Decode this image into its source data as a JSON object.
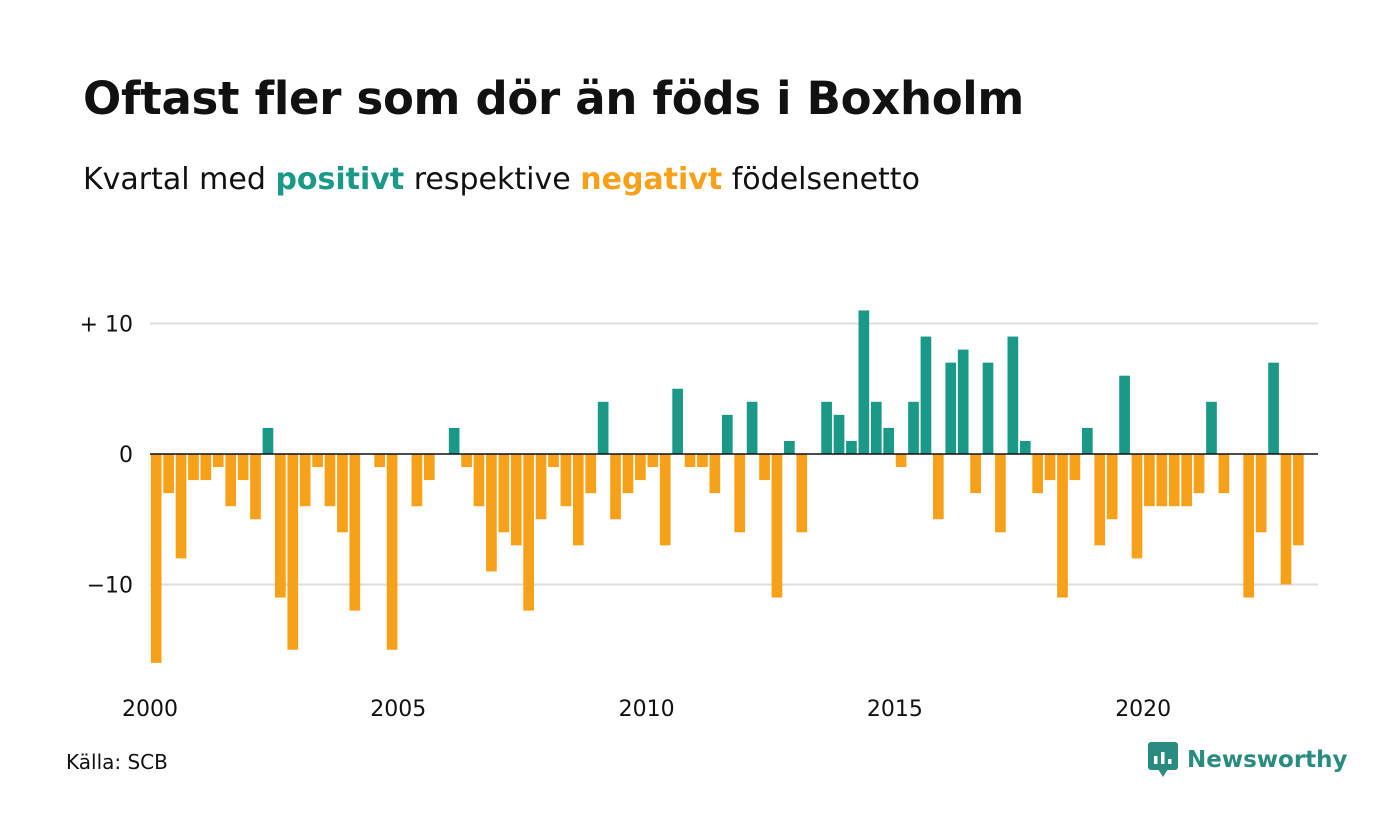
{
  "header": {
    "title": "Oftast fler som dör än föds i Boxholm",
    "subtitle_prefix": "Kvartal med",
    "subtitle_positive": "positivt",
    "subtitle_middle": "respektive",
    "subtitle_negative": "negativt",
    "subtitle_suffix": "födelsenetto"
  },
  "colors": {
    "positive": "#1a9988",
    "negative": "#f7a11a",
    "grid": "#dddddd",
    "baseline": "#111111",
    "brand": "#2a8c80"
  },
  "footer": {
    "source": "Källa: SCB",
    "brand_name": "Newsworthy",
    "brand_icon": "newsworthy-logo-icon"
  },
  "chart_data": {
    "type": "bar",
    "title": "Oftast fler som dör än föds i Boxholm",
    "subtitle": "Kvartal med positivt respektive negativt födelsenetto",
    "x_start": "2000-Q1",
    "x_end": "2023-Q2",
    "x_ticks": [
      "2000",
      "2005",
      "2010",
      "2015",
      "2020"
    ],
    "y_ticks": [
      {
        "value": 10,
        "label": "+ 10"
      },
      {
        "value": 0,
        "label": "0"
      },
      {
        "value": -10,
        "label": "−10"
      }
    ],
    "ylim": [
      -16,
      11
    ],
    "grid": true,
    "categories": [
      "2000-Q1",
      "2000-Q2",
      "2000-Q3",
      "2000-Q4",
      "2001-Q1",
      "2001-Q2",
      "2001-Q3",
      "2001-Q4",
      "2002-Q1",
      "2002-Q2",
      "2002-Q3",
      "2002-Q4",
      "2003-Q1",
      "2003-Q2",
      "2003-Q3",
      "2003-Q4",
      "2004-Q1",
      "2004-Q2",
      "2004-Q3",
      "2004-Q4",
      "2005-Q1",
      "2005-Q2",
      "2005-Q3",
      "2005-Q4",
      "2006-Q1",
      "2006-Q2",
      "2006-Q3",
      "2006-Q4",
      "2007-Q1",
      "2007-Q2",
      "2007-Q3",
      "2007-Q4",
      "2008-Q1",
      "2008-Q2",
      "2008-Q3",
      "2008-Q4",
      "2009-Q1",
      "2009-Q2",
      "2009-Q3",
      "2009-Q4",
      "2010-Q1",
      "2010-Q2",
      "2010-Q3",
      "2010-Q4",
      "2011-Q1",
      "2011-Q2",
      "2011-Q3",
      "2011-Q4",
      "2012-Q1",
      "2012-Q2",
      "2012-Q3",
      "2012-Q4",
      "2013-Q1",
      "2013-Q2",
      "2013-Q3",
      "2013-Q4",
      "2014-Q1",
      "2014-Q2",
      "2014-Q3",
      "2014-Q4",
      "2015-Q1",
      "2015-Q2",
      "2015-Q3",
      "2015-Q4",
      "2016-Q1",
      "2016-Q2",
      "2016-Q3",
      "2016-Q4",
      "2017-Q1",
      "2017-Q2",
      "2017-Q3",
      "2017-Q4",
      "2018-Q1",
      "2018-Q2",
      "2018-Q3",
      "2018-Q4",
      "2019-Q1",
      "2019-Q2",
      "2019-Q3",
      "2019-Q4",
      "2020-Q1",
      "2020-Q2",
      "2020-Q3",
      "2020-Q4",
      "2021-Q1",
      "2021-Q2",
      "2021-Q3",
      "2021-Q4",
      "2022-Q1",
      "2022-Q2",
      "2022-Q3",
      "2022-Q4",
      "2023-Q1",
      "2023-Q2"
    ],
    "values": [
      -16,
      -3,
      -8,
      -2,
      -2,
      -1,
      -4,
      -2,
      -5,
      2,
      -11,
      -15,
      -4,
      -1,
      -4,
      -6,
      -12,
      0,
      -1,
      -15,
      0,
      -4,
      -2,
      0,
      2,
      -1,
      -4,
      -9,
      -6,
      -7,
      -12,
      -5,
      -1,
      -4,
      -7,
      -3,
      4,
      -5,
      -3,
      -2,
      -1,
      -7,
      5,
      -1,
      -1,
      -3,
      3,
      -6,
      4,
      -2,
      -11,
      1,
      -6,
      0,
      4,
      3,
      1,
      11,
      4,
      2,
      -1,
      4,
      9,
      -5,
      7,
      8,
      -3,
      7,
      -6,
      9,
      1,
      -3,
      -2,
      -11,
      -2,
      2,
      -7,
      -5,
      6,
      -8,
      -4,
      -4,
      -4,
      -4,
      -3,
      4,
      -3,
      0,
      -11,
      -6,
      7,
      -10,
      -7,
      0
    ]
  }
}
